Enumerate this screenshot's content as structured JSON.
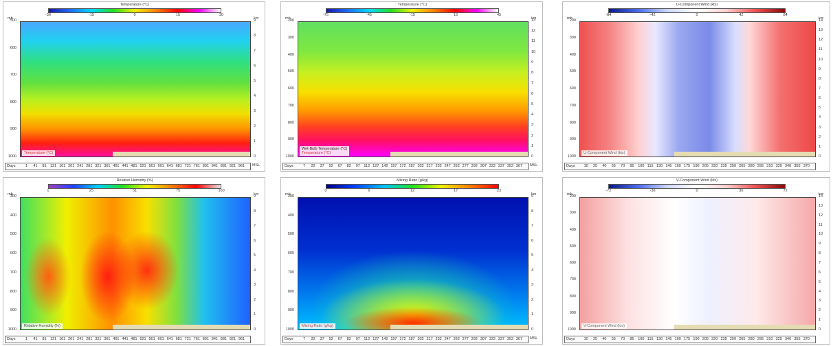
{
  "panels": [
    {
      "colorbar_title": "Temperature (°C)",
      "colorbar_ticks": [
        "-30",
        "-15",
        "0",
        "15",
        "30"
      ],
      "y_unit": "mb",
      "y_ticks": [
        "500",
        "600",
        "700",
        "800",
        "900",
        "1000"
      ],
      "y2_unit": "km",
      "y2_ticks": [
        "9",
        "8",
        "7",
        "6",
        "5",
        "4",
        "3",
        "2",
        "1",
        "0"
      ],
      "x_label": "Days",
      "x_end": "MSL",
      "x_ticks": [
        "1",
        "41",
        "81",
        "121",
        "161",
        "201",
        "241",
        "281",
        "321",
        "361",
        "401",
        "441",
        "481",
        "521",
        "561",
        "601",
        "641",
        "681",
        "721",
        "761",
        "801",
        "841",
        "881",
        "921",
        "961"
      ],
      "legend": [
        "Temperature (°C)"
      ]
    },
    {
      "colorbar_title": "Temperature (°C)",
      "colorbar_ticks": [
        "-75",
        "-45",
        "-15",
        "15",
        "45"
      ],
      "y_unit": "mb",
      "y_ticks": [
        "200",
        "300",
        "400",
        "500",
        "600",
        "700",
        "800",
        "900",
        "1000"
      ],
      "y2_unit": "km",
      "y2_ticks": [
        "13",
        "12",
        "11",
        "10",
        "9",
        "8",
        "7",
        "6",
        "5",
        "4",
        "3",
        "2",
        "1",
        "0"
      ],
      "x_label": "Days",
      "x_end": "MSL",
      "x_ticks": [
        "7",
        "22",
        "37",
        "52",
        "67",
        "82",
        "97",
        "112",
        "127",
        "142",
        "157",
        "172",
        "187",
        "202",
        "217",
        "232",
        "247",
        "262",
        "277",
        "292",
        "307",
        "322",
        "337",
        "352",
        "367"
      ],
      "legend": [
        "Wet-Bulb Temperature (°C)",
        "Temperature (°C)"
      ]
    },
    {
      "colorbar_title": "U-Component Wind (kts)",
      "colorbar_ticks": [
        "-84",
        "-42",
        "0",
        "42",
        "84"
      ],
      "y_unit": "mb",
      "y_ticks": [
        "200",
        "300",
        "400",
        "500",
        "600",
        "700",
        "800",
        "900",
        "1000"
      ],
      "y2_unit": "km",
      "y2_ticks": [
        "14",
        "13",
        "12",
        "11",
        "10",
        "9",
        "8",
        "7",
        "6",
        "5",
        "4",
        "3",
        "2",
        "1",
        "0"
      ],
      "x_label": "Days",
      "x_ticks": [
        "10",
        "25",
        "40",
        "55",
        "70",
        "85",
        "100",
        "115",
        "130",
        "145",
        "160",
        "175",
        "190",
        "205",
        "220",
        "235",
        "250",
        "265",
        "280",
        "295",
        "310",
        "325",
        "340",
        "355",
        "370"
      ],
      "legend": [
        "U-Component Wind (kts)"
      ]
    },
    {
      "colorbar_title": "Relative Humidity (%)",
      "colorbar_ticks": [
        "1",
        "25",
        "51",
        "75",
        "100"
      ],
      "y_unit": "mb",
      "y_ticks": [
        "300",
        "400",
        "500",
        "600",
        "700",
        "800",
        "900",
        "1000"
      ],
      "y2_unit": "km",
      "y2_ticks": [
        "9",
        "8",
        "7",
        "6",
        "5",
        "4",
        "3",
        "2",
        "1",
        "0"
      ],
      "x_label": "Days",
      "x_ticks": [
        "1",
        "41",
        "81",
        "121",
        "161",
        "201",
        "241",
        "281",
        "321",
        "361",
        "401",
        "441",
        "481",
        "521",
        "561",
        "601",
        "641",
        "681",
        "721",
        "761",
        "801",
        "841",
        "881",
        "921",
        "961"
      ],
      "legend": [
        "Relative Humidity (%)"
      ]
    },
    {
      "colorbar_title": "Mixing Ratio (g/kg)",
      "colorbar_ticks": [
        "0",
        "6",
        "12",
        "17",
        "23"
      ],
      "y_unit": "mb",
      "y_ticks": [
        "300",
        "400",
        "500",
        "600",
        "700",
        "800",
        "900",
        "1000"
      ],
      "y2_unit": "km",
      "y2_ticks": [
        "9",
        "8",
        "7",
        "6",
        "5",
        "4",
        "3",
        "2",
        "1",
        "0"
      ],
      "x_label": "Days",
      "x_end": "MSL",
      "x_ticks": [
        "7",
        "22",
        "37",
        "52",
        "67",
        "82",
        "97",
        "112",
        "127",
        "142",
        "157",
        "172",
        "187",
        "202",
        "217",
        "232",
        "247",
        "262",
        "277",
        "292",
        "307",
        "322",
        "337",
        "352",
        "367"
      ],
      "legend": [
        "Mixing Ratio (g/kg)"
      ]
    },
    {
      "colorbar_title": "V-Component Wind (kts)",
      "colorbar_ticks": [
        "-72",
        "-36",
        "0",
        "36",
        "72"
      ],
      "y_unit": "mb",
      "y_ticks": [
        "200",
        "300",
        "400",
        "500",
        "600",
        "700",
        "800",
        "900",
        "1000"
      ],
      "y2_unit": "km",
      "y2_ticks": [
        "14",
        "13",
        "12",
        "11",
        "10",
        "9",
        "8",
        "7",
        "6",
        "5",
        "4",
        "3",
        "2",
        "1",
        "0"
      ],
      "x_label": "Days",
      "x_ticks": [
        "10",
        "25",
        "40",
        "55",
        "70",
        "85",
        "100",
        "115",
        "130",
        "145",
        "160",
        "175",
        "190",
        "205",
        "220",
        "235",
        "250",
        "265",
        "280",
        "295",
        "310",
        "325",
        "340",
        "355",
        "370"
      ],
      "legend": [
        "V-Component Wind (kts)"
      ]
    }
  ]
}
